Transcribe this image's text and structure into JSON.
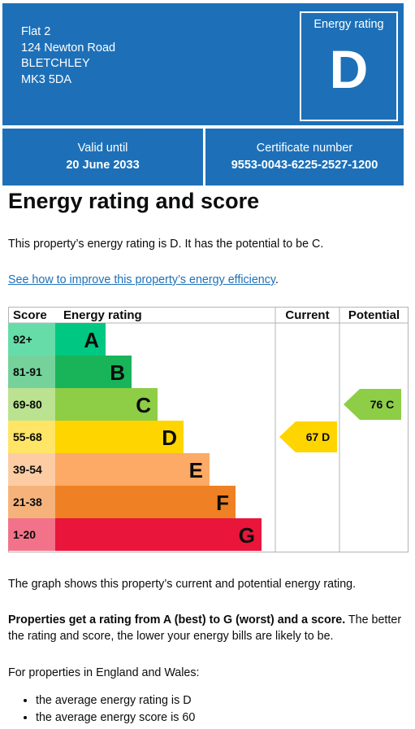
{
  "header": {
    "address_lines": [
      "Flat 2",
      "124 Newton Road",
      "BLETCHLEY",
      "MK3 5DA"
    ],
    "rating_label": "Energy rating",
    "rating_letter": "D"
  },
  "valid": {
    "label": "Valid until",
    "value": "20 June 2033"
  },
  "certificate": {
    "label": "Certificate number",
    "value": "9553-0043-6225-2527-1200"
  },
  "heading": "Energy rating and score",
  "summary_text": "This property’s energy rating is D. It has the potential to be C.",
  "improve_link": "See how to improve this property’s energy efficiency",
  "improve_link_suffix": ".",
  "chart_data": {
    "type": "bar",
    "title": "",
    "column_headers": {
      "score": "Score",
      "rating": "Energy rating",
      "current": "Current",
      "potential": "Potential"
    },
    "bands": [
      {
        "letter": "A",
        "range": "92+",
        "color": "#00c781",
        "range_bg": "#66dda9"
      },
      {
        "letter": "B",
        "range": "81-91",
        "color": "#19b459",
        "range_bg": "#75d29b"
      },
      {
        "letter": "C",
        "range": "69-80",
        "color": "#8dce46",
        "range_bg": "#bbe290"
      },
      {
        "letter": "D",
        "range": "55-68",
        "color": "#ffd500",
        "range_bg": "#ffe566"
      },
      {
        "letter": "E",
        "range": "39-54",
        "color": "#fcaa65",
        "range_bg": "#fdcca3"
      },
      {
        "letter": "F",
        "range": "21-38",
        "color": "#ef8023",
        "range_bg": "#f5b37b"
      },
      {
        "letter": "G",
        "range": "1-20",
        "color": "#e9153b",
        "range_bg": "#f27389"
      }
    ],
    "current": {
      "score": 67,
      "letter": "D",
      "label": "67 D",
      "color": "#ffd500"
    },
    "potential": {
      "score": 76,
      "letter": "C",
      "label": "76 C",
      "color": "#8dce46"
    }
  },
  "graph_caption": "The graph shows this property’s current and potential energy rating.",
  "rating_info_bold": "Properties get a rating from A (best) to G (worst) and a score.",
  "rating_info_rest": " The better the rating and score, the lower your energy bills are likely to be.",
  "england_wales_intro": "For properties in England and Wales:",
  "averages": [
    "the average energy rating is D",
    "the average energy score is 60"
  ]
}
